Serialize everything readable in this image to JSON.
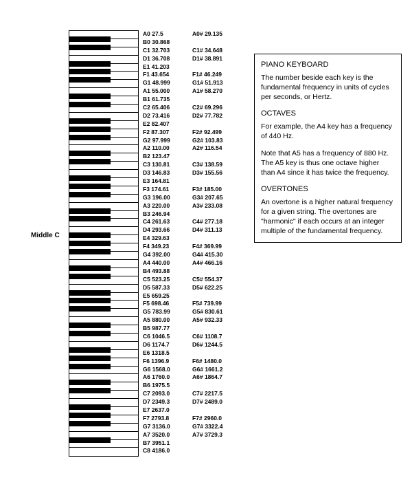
{
  "middle_c_label": "Middle C",
  "keyboard": {
    "white_keys": 52,
    "black_key_indices": [
      1,
      2,
      4,
      5,
      6,
      8,
      9,
      11,
      12,
      13,
      15,
      16,
      18,
      19,
      20,
      22,
      23,
      25,
      26,
      27,
      29,
      30,
      32,
      33,
      34,
      36,
      37,
      39,
      40,
      41,
      43,
      44,
      46,
      47,
      48,
      50
    ]
  },
  "natural_notes": [
    "A0 27.5",
    "B0 30.868",
    "C1 32.703",
    "D1 36.708",
    "E1 41.203",
    "F1 43.654",
    "G1 48.999",
    "A1 55.000",
    "B1 61.735",
    "C2 65.406",
    "D2 73.416",
    "E2 82.407",
    "F2 87.307",
    "G2 97.999",
    "A2 110.00",
    "B2 123.47",
    "C3 130.81",
    "D3 146.83",
    "E3 164.81",
    "F3 174.61",
    "G3 196.00",
    "A3 220.00",
    "B3 246.94",
    "C4 261.63",
    "D4 293.66",
    "E4 329.63",
    "F4 349.23",
    "G4 392.00",
    "A4 440.00",
    "B4 493.88",
    "C5 523.25",
    "D5 587.33",
    "E5 659.25",
    "F5 698.46",
    "G5 783.99",
    "A5 880.00",
    "B5 987.77",
    "C6 1046.5",
    "D6 1174.7",
    "E6 1318.5",
    "F6 1396.9",
    "G6 1568.0",
    "A6 1760.0",
    "B6 1975.5",
    "C7 2093.0",
    "D7 2349.3",
    "E7 2637.0",
    "F7 2793.8",
    "G7 3136.0",
    "A7 3520.0",
    "B7 3951.1",
    "C8 4186.0"
  ],
  "sharp_notes": [
    "A0# 29.135",
    "",
    "C1# 34.648",
    "D1# 38.891",
    "",
    "F1# 46.249",
    "G1# 51.913",
    "A1# 58.270",
    "",
    "C2# 69.296",
    "D2# 77.782",
    "",
    "F2# 92.499",
    "G2# 103.83",
    "A2# 116.54",
    "",
    "C3# 138.59",
    "D3# 155.56",
    "",
    "F3# 185.00",
    "G3# 207.65",
    "A3# 233.08",
    "",
    "C4# 277.18",
    "D4# 311.13",
    "",
    "F4# 369.99",
    "G4# 415.30",
    "A4# 466.16",
    "",
    "C5# 554.37",
    "D5# 622.25",
    "",
    "F5# 739.99",
    "G5# 830.61",
    "A5# 932.33",
    "",
    "C6# 1108.7",
    "D6# 1244.5",
    "",
    "F6# 1480.0",
    "G6# 1661.2",
    "A6# 1864.7",
    "",
    "C7# 2217.5",
    "D7# 2489.0",
    "",
    "F7# 2960.0",
    "G7# 3322.4",
    "A7# 3729.3",
    "",
    "",
    ""
  ],
  "info": {
    "h1": "PIANO KEYBOARD",
    "p1": "The number beside each key is the fundamental frequency in units of cycles per seconds, or Hertz.",
    "h2": "OCTAVES",
    "p2": "For example, the A4 key has a frequency of 440 Hz.",
    "p3": "Note that A5 has a frequency of 880 Hz.  The A5 key is thus one octave higher than A4 since it has twice the frequency.",
    "h3": "OVERTONES",
    "p4": "An overtone is a higher natural frequency for a given string.  The overtones are \"harmonic\" if each occurs at an integer multiple of the fundamental frequency."
  }
}
